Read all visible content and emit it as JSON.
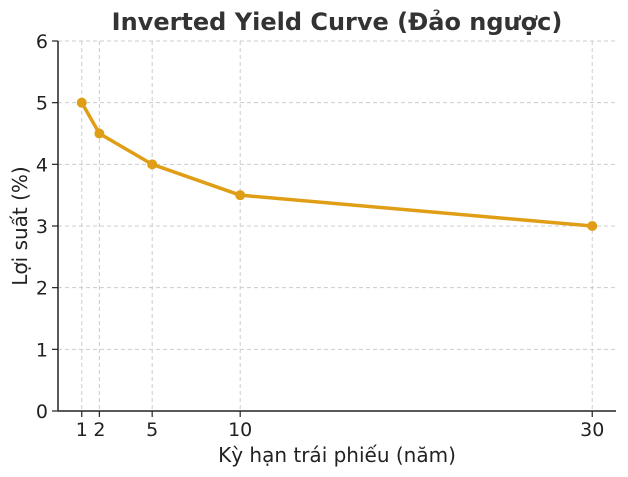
{
  "chart_data": {
    "type": "line",
    "title": "Inverted Yield Curve (Đảo ngược)",
    "xlabel": "Kỳ hạn trái phiếu (năm)",
    "ylabel": "Lợi suất (%)",
    "x": [
      1,
      2,
      5,
      10,
      30
    ],
    "series": [
      {
        "values": [
          5.0,
          4.5,
          4.0,
          3.5,
          3.0
        ]
      }
    ],
    "xticks": [
      1,
      2,
      5,
      10,
      30
    ],
    "yticks": [
      0,
      1,
      2,
      3,
      4,
      5,
      6
    ],
    "xlim": [
      -0.35,
      31.35
    ],
    "ylim": [
      0,
      6
    ],
    "grid": true,
    "colors": {
      "line": "#e09e17"
    }
  }
}
